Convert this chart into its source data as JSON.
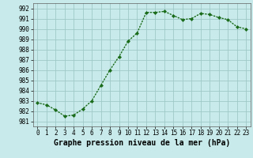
{
  "x": [
    0,
    1,
    2,
    3,
    4,
    5,
    6,
    7,
    8,
    9,
    10,
    11,
    12,
    13,
    14,
    15,
    16,
    17,
    18,
    19,
    20,
    21,
    22,
    23
  ],
  "y": [
    982.8,
    982.6,
    982.1,
    981.5,
    981.6,
    982.2,
    983.0,
    984.5,
    986.0,
    987.3,
    988.8,
    989.6,
    991.6,
    991.6,
    991.7,
    991.3,
    990.9,
    991.0,
    991.5,
    991.4,
    991.1,
    990.9,
    990.2,
    990.0
  ],
  "line_color": "#1a6b1a",
  "marker": "D",
  "marker_size": 2.0,
  "bg_color": "#c8eaea",
  "grid_color": "#a0c8c8",
  "xlabel": "Graphe pression niveau de la mer (hPa)",
  "xlabel_fontsize": 7,
  "ylabel_ticks": [
    981,
    982,
    983,
    984,
    985,
    986,
    987,
    988,
    989,
    990,
    991,
    992
  ],
  "ylim": [
    980.5,
    992.5
  ],
  "xlim": [
    -0.5,
    23.5
  ],
  "xtick_labels": [
    "0",
    "1",
    "2",
    "3",
    "4",
    "5",
    "6",
    "7",
    "8",
    "9",
    "10",
    "11",
    "12",
    "13",
    "14",
    "15",
    "16",
    "17",
    "18",
    "19",
    "20",
    "21",
    "22",
    "23"
  ],
  "tick_fontsize": 5.5,
  "line_width": 1.0
}
